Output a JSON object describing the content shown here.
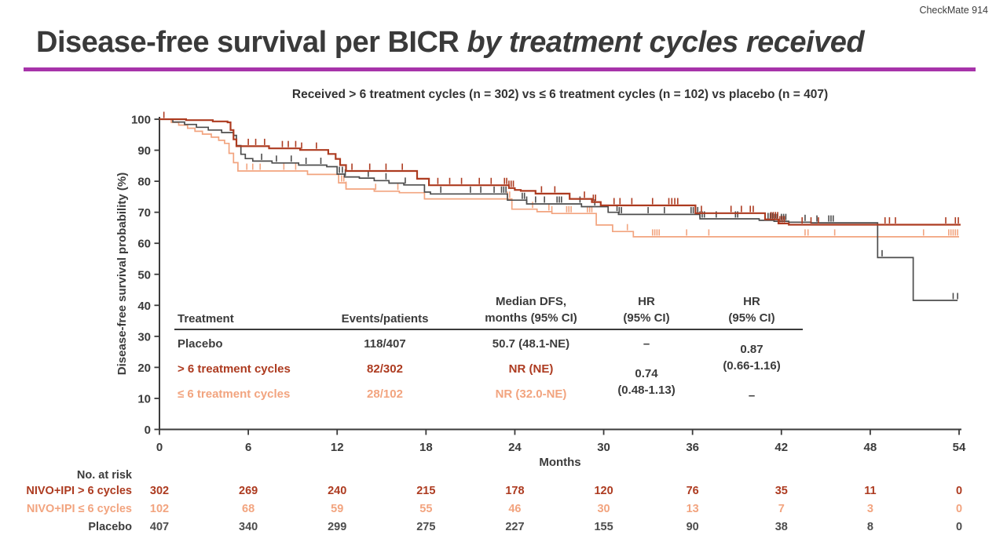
{
  "slide": {
    "watermark": "CheckMate 914",
    "title": {
      "regular": "Disease-free survival per BICR ",
      "italic": "by treatment cycles received"
    },
    "accent_color": "#a733aa"
  },
  "chart_data": {
    "type": "line",
    "subtype": "kaplan-meier-step",
    "title": "Received > 6 treatment cycles (n = 302) vs ≤ 6 treatment cycles (n = 102) vs placebo (n = 407)",
    "xlabel": "Months",
    "ylabel": "Disease-free survival probability (%)",
    "xlim": [
      0,
      54
    ],
    "ylim": [
      0,
      100
    ],
    "xticks": [
      0,
      6,
      12,
      18,
      24,
      30,
      36,
      42,
      48,
      54
    ],
    "yticks": [
      0,
      10,
      20,
      30,
      40,
      50,
      60,
      70,
      80,
      90,
      100
    ],
    "grid": false,
    "legend_position": "none",
    "series": [
      {
        "name": "> 6 treatment cycles",
        "color": "#ad3b20",
        "width": 2.2,
        "z": 3,
        "steps": [
          [
            0,
            100
          ],
          [
            1.8,
            99.7
          ],
          [
            3.6,
            99.3
          ],
          [
            4.6,
            99
          ],
          [
            4.8,
            96.5
          ],
          [
            5.0,
            93.5
          ],
          [
            5.2,
            91.3
          ],
          [
            7.4,
            90.6
          ],
          [
            9.5,
            90.1
          ],
          [
            11.4,
            88.8
          ],
          [
            11.9,
            87.2
          ],
          [
            12.2,
            85.2
          ],
          [
            12.6,
            83.3
          ],
          [
            17.4,
            80.8
          ],
          [
            18.2,
            78.7
          ],
          [
            23.6,
            77.8
          ],
          [
            24.0,
            77.2
          ],
          [
            24.4,
            76.9
          ],
          [
            25.4,
            76.0
          ],
          [
            27.7,
            74.3
          ],
          [
            29.2,
            73.3
          ],
          [
            29.8,
            72.2
          ],
          [
            36.2,
            69.7
          ],
          [
            40.9,
            67.7
          ],
          [
            41.8,
            66.4
          ],
          [
            42.5,
            66.0
          ],
          [
            54.1,
            66.0
          ]
        ],
        "censors": [
          0.3,
          6.0,
          6.5,
          7.1,
          8.3,
          8.7,
          9.2,
          9.6,
          10.6,
          13.0,
          14.2,
          15.3,
          16.4,
          18.8,
          19.6,
          20.4,
          21.6,
          22.4,
          23.3,
          23.45,
          23.6,
          23.75,
          23.9,
          25.8,
          26.7,
          28.7,
          29.3,
          29.45,
          30.7,
          31.1,
          31.9,
          33.3,
          34.4,
          34.6,
          34.8,
          35.0,
          36.6,
          38.6,
          39.3,
          39.9,
          40.1,
          41.3,
          41.45,
          41.6,
          41.75,
          41.9,
          42.05,
          42.2,
          43.4,
          44.0,
          44.5,
          49.0,
          49.3,
          49.7,
          53.1,
          53.75,
          53.95
        ]
      },
      {
        "name": "≤ 6 treatment cycles",
        "color": "#f2a47f",
        "width": 1.7,
        "z": 1,
        "steps": [
          [
            0,
            100
          ],
          [
            0.8,
            99
          ],
          [
            1.3,
            98.1
          ],
          [
            1.9,
            97.1
          ],
          [
            2.4,
            96.1
          ],
          [
            2.9,
            95.2
          ],
          [
            3.5,
            94.2
          ],
          [
            4.0,
            93.2
          ],
          [
            4.4,
            92.2
          ],
          [
            4.7,
            89.0
          ],
          [
            5.0,
            86.0
          ],
          [
            5.3,
            83.3
          ],
          [
            10.0,
            82.2
          ],
          [
            12.1,
            79.5
          ],
          [
            12.6,
            77.5
          ],
          [
            14.5,
            76.8
          ],
          [
            16.2,
            76.3
          ],
          [
            17.9,
            74.3
          ],
          [
            23.8,
            71.0
          ],
          [
            25.5,
            70.2
          ],
          [
            26.5,
            69.6
          ],
          [
            29.5,
            65.9
          ],
          [
            30.6,
            63.8
          ],
          [
            32.0,
            62.1
          ],
          [
            54.0,
            62.1
          ]
        ],
        "censors": [
          5.9,
          6.3,
          6.8,
          8.4,
          9.2,
          12.3,
          12.45,
          12.6,
          14.6,
          16.1,
          23.5,
          23.65,
          25.2,
          26.3,
          26.5,
          27.5,
          27.65,
          27.8,
          28.9,
          29.05,
          29.2,
          31.6,
          33.3,
          33.45,
          33.6,
          33.75,
          35.6,
          37.1,
          43.6,
          43.8,
          45.6,
          51.6,
          53.3,
          53.45,
          53.6,
          53.75,
          53.9
        ]
      },
      {
        "name": "Placebo",
        "color": "#4d4d4d",
        "width": 1.7,
        "z": 2,
        "steps": [
          [
            0,
            100
          ],
          [
            0.9,
            99.1
          ],
          [
            1.7,
            98.3
          ],
          [
            2.5,
            97.4
          ],
          [
            3.3,
            96.5
          ],
          [
            4.2,
            95.7
          ],
          [
            5.0,
            94.8
          ],
          [
            5.2,
            91.5
          ],
          [
            5.5,
            88.7
          ],
          [
            5.8,
            87.3
          ],
          [
            6.3,
            86.5
          ],
          [
            7.6,
            85.9
          ],
          [
            9.4,
            85.2
          ],
          [
            11.3,
            84.7
          ],
          [
            12.0,
            82.3
          ],
          [
            12.5,
            81.4
          ],
          [
            13.5,
            81.0
          ],
          [
            14.5,
            80.2
          ],
          [
            15.5,
            79.4
          ],
          [
            16.5,
            78.8
          ],
          [
            17.9,
            76.5
          ],
          [
            18.3,
            75.9
          ],
          [
            23.5,
            73.9
          ],
          [
            24.8,
            72.7
          ],
          [
            28.5,
            71.8
          ],
          [
            30.3,
            70.0
          ],
          [
            31.0,
            69.3
          ],
          [
            36.5,
            67.9
          ],
          [
            40.5,
            67.4
          ],
          [
            41.5,
            67.1
          ],
          [
            42.5,
            66.8
          ],
          [
            44.0,
            66.6
          ],
          [
            48.5,
            55.4
          ],
          [
            50.9,
            41.6
          ],
          [
            53.9,
            41.6
          ]
        ],
        "censors": [
          6.9,
          7.9,
          8.9,
          9.9,
          10.9,
          12.15,
          12.35,
          12.55,
          14.1,
          15.3,
          16.6,
          19.0,
          21.0,
          21.7,
          22.6,
          23.1,
          23.25,
          23.4,
          24.5,
          24.65,
          24.8,
          25.4,
          26.0,
          26.85,
          27.0,
          27.15,
          28.4,
          29.4,
          30.9,
          31.05,
          31.2,
          33.0,
          34.1,
          35.9,
          36.05,
          36.2,
          36.35,
          36.5,
          36.65,
          36.8,
          37.6,
          38.9,
          39.05,
          41.1,
          41.25,
          41.4,
          41.55,
          41.7,
          42.0,
          42.15,
          42.3,
          43.6,
          44.4,
          45.2,
          45.35,
          45.5,
          48.8,
          53.6,
          53.9
        ]
      }
    ]
  },
  "stats_table": {
    "headers": {
      "treatment": "Treatment",
      "events": "Events/patients",
      "median_line1": "Median DFS,",
      "median_line2": "months (95% CI)",
      "hr1_line1": "HR",
      "hr1_line2": "(95% CI)",
      "hr2_line1": "HR",
      "hr2_line2": "(95% CI)"
    },
    "rows": [
      {
        "treatment": "Placebo",
        "events": "118/407",
        "median": "50.7 (48.1-NE)",
        "hr1": "–"
      },
      {
        "treatment": "> 6 treatment cycles",
        "events": "82/302",
        "median": "NR (NE)"
      },
      {
        "treatment": "≤ 6 treatment cycles",
        "events": "28/102",
        "median": "NR (32.0-NE)",
        "hr2": "–"
      }
    ],
    "hr1_merged": {
      "value": "0.74",
      "ci": "(0.48-1.13)"
    },
    "hr2_merged": {
      "value": "0.87",
      "ci": "(0.66-1.16)"
    }
  },
  "at_risk": {
    "label": "No. at risk",
    "months": [
      0,
      6,
      12,
      18,
      24,
      30,
      36,
      42,
      48,
      54
    ],
    "rows": [
      {
        "name": "NIVO+IPI > 6 cycles",
        "color": "#ad3b20",
        "values": [
          302,
          269,
          240,
          215,
          178,
          120,
          76,
          35,
          11,
          0
        ]
      },
      {
        "name": "NIVO+IPI ≤ 6 cycles",
        "color": "#f2a47f",
        "values": [
          102,
          68,
          59,
          55,
          46,
          30,
          13,
          7,
          3,
          0
        ]
      },
      {
        "name": "Placebo",
        "color": "#4d4d4d",
        "values": [
          407,
          340,
          299,
          275,
          227,
          155,
          90,
          38,
          8,
          0
        ]
      }
    ]
  }
}
